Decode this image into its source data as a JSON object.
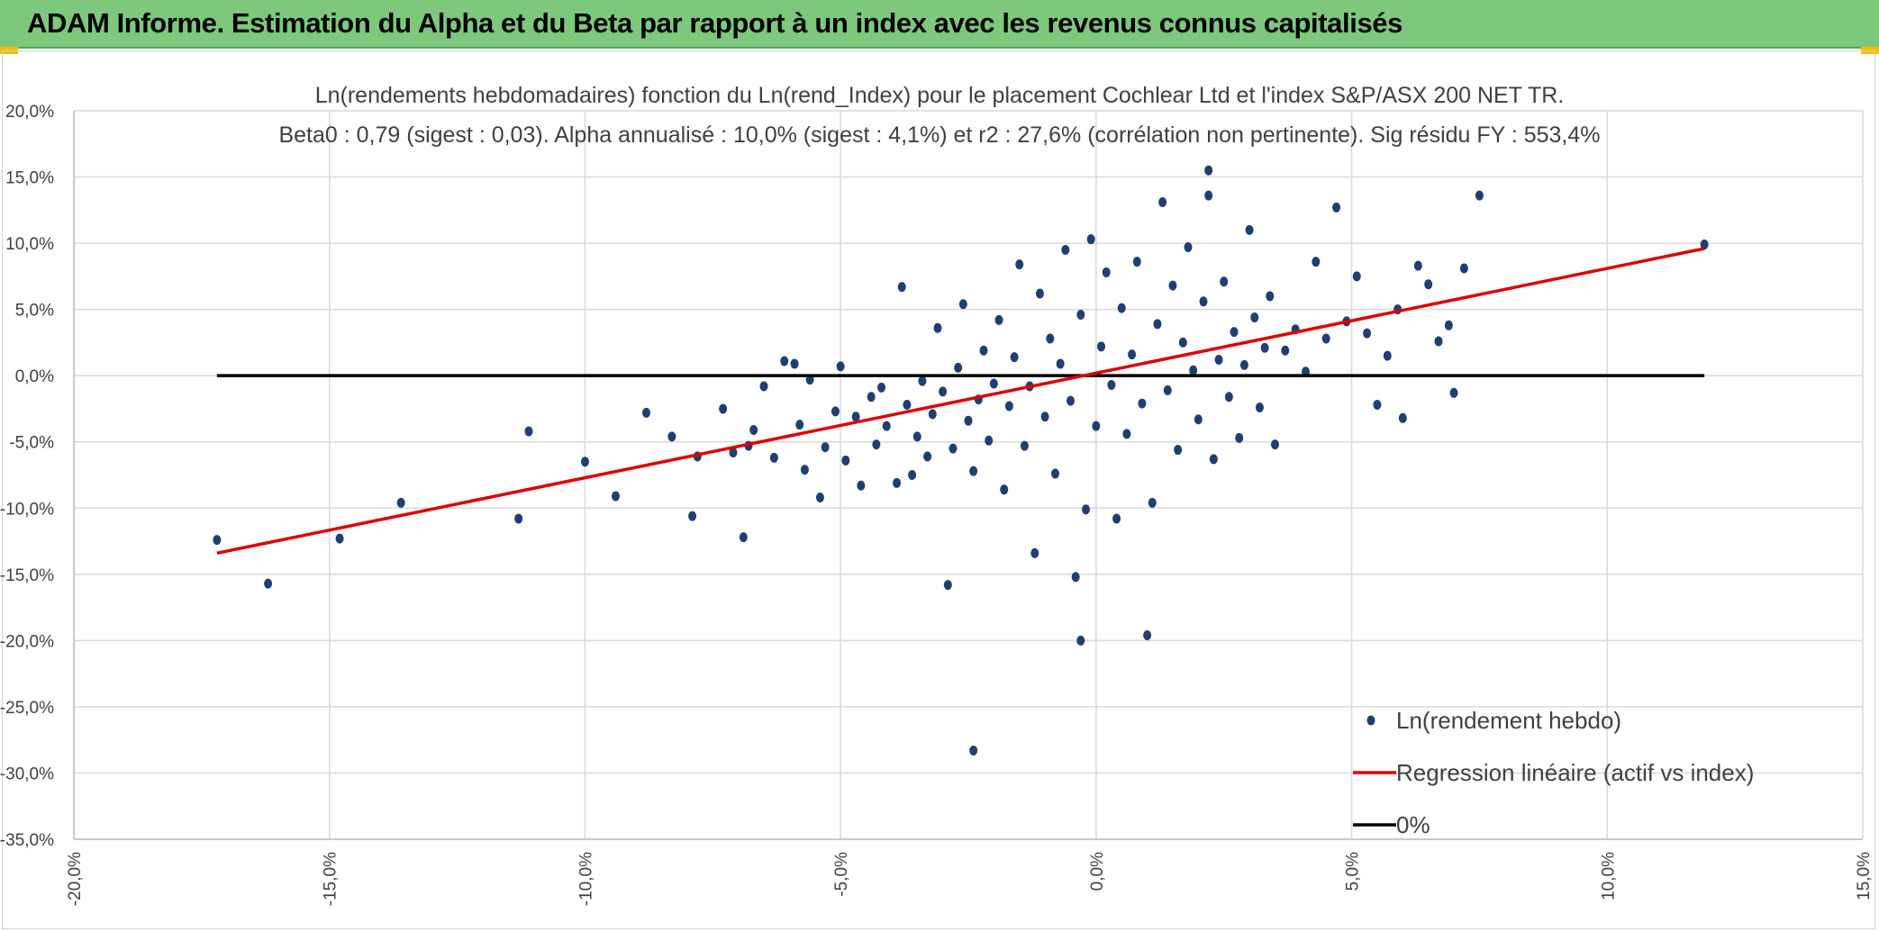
{
  "header": {
    "title": "ADAM Informe. Estimation du Alpha et du Beta par rapport à un index avec les revenus connus capitalisés",
    "background": "#7dc87d",
    "accent": "#f3c000"
  },
  "chart_data": {
    "type": "scatter",
    "title": "Ln(rendements hebdomadaires) fonction du Ln(rend_Index) pour le placement Cochlear Ltd et l'index S&P/ASX 200 NET TR.",
    "subtitle": "Beta0 : 0,79 (sigest : 0,03). Alpha annualisé : 10,0% (sigest : 4,1%) et r2 : 27,6% (corrélation non pertinente). Sig résidu FY : 553,4%",
    "xlabel": "",
    "ylabel": "",
    "xlim": [
      -20,
      15
    ],
    "ylim": [
      -35,
      20
    ],
    "x_ticks": [
      -20,
      -15,
      -10,
      -5,
      0,
      5,
      10,
      15
    ],
    "x_tick_labels": [
      "-20,0%",
      "-15,0%",
      "-10,0%",
      "-5,0%",
      "0,0%",
      "5,0%",
      "10,0%",
      "15,0%"
    ],
    "y_ticks": [
      20,
      15,
      10,
      5,
      0,
      -5,
      -10,
      -15,
      -20,
      -25,
      -30,
      -35
    ],
    "y_tick_labels": [
      "20,0%",
      "15,0%",
      "10,0%",
      "5,0%",
      "0,0%",
      "-5,0%",
      "-10,0%",
      "-15,0%",
      "-20,0%",
      "-25,0%",
      "-30,0%",
      "-35,0%"
    ],
    "grid": true,
    "legend_position": "bottom-right",
    "series": [
      {
        "name": "Ln(rendement hebdo)",
        "kind": "scatter",
        "color": "#1f3f73",
        "points": [
          [
            -17.2,
            -12.4
          ],
          [
            -16.2,
            -15.7
          ],
          [
            -14.8,
            -12.3
          ],
          [
            -13.6,
            -9.6
          ],
          [
            -11.3,
            -10.8
          ],
          [
            -11.1,
            -4.2
          ],
          [
            -10.0,
            -6.5
          ],
          [
            -9.4,
            -9.1
          ],
          [
            -8.8,
            -2.8
          ],
          [
            -8.3,
            -4.6
          ],
          [
            -7.9,
            -10.6
          ],
          [
            -7.8,
            -6.1
          ],
          [
            -7.3,
            -2.5
          ],
          [
            -7.1,
            -5.8
          ],
          [
            -6.9,
            -12.2
          ],
          [
            -6.8,
            -5.3
          ],
          [
            -6.7,
            -4.1
          ],
          [
            -6.5,
            -0.8
          ],
          [
            -6.3,
            -6.2
          ],
          [
            -6.1,
            1.1
          ],
          [
            -5.9,
            0.9
          ],
          [
            -5.8,
            -3.7
          ],
          [
            -5.7,
            -7.1
          ],
          [
            -5.6,
            -0.3
          ],
          [
            -5.4,
            -9.2
          ],
          [
            -5.3,
            -5.4
          ],
          [
            -5.1,
            -2.7
          ],
          [
            -5.0,
            0.7
          ],
          [
            -4.9,
            -6.4
          ],
          [
            -4.7,
            -3.1
          ],
          [
            -4.6,
            -8.3
          ],
          [
            -4.4,
            -1.6
          ],
          [
            -4.3,
            -5.2
          ],
          [
            -4.2,
            -0.9
          ],
          [
            -4.1,
            -3.8
          ],
          [
            -3.9,
            -8.1
          ],
          [
            -3.8,
            6.7
          ],
          [
            -3.7,
            -2.2
          ],
          [
            -3.6,
            -7.5
          ],
          [
            -3.5,
            -4.6
          ],
          [
            -3.4,
            -0.4
          ],
          [
            -3.3,
            -6.1
          ],
          [
            -3.2,
            -2.9
          ],
          [
            -3.1,
            3.6
          ],
          [
            -3.0,
            -1.2
          ],
          [
            -2.9,
            -15.8
          ],
          [
            -2.8,
            -5.5
          ],
          [
            -2.7,
            0.6
          ],
          [
            -2.6,
            5.4
          ],
          [
            -2.5,
            -3.4
          ],
          [
            -2.4,
            -7.2
          ],
          [
            -2.4,
            -28.3
          ],
          [
            -2.3,
            -1.8
          ],
          [
            -2.2,
            1.9
          ],
          [
            -2.1,
            -4.9
          ],
          [
            -2.0,
            -0.6
          ],
          [
            -1.9,
            4.2
          ],
          [
            -1.8,
            -8.6
          ],
          [
            -1.7,
            -2.3
          ],
          [
            -1.6,
            1.4
          ],
          [
            -1.5,
            8.4
          ],
          [
            -1.4,
            -5.3
          ],
          [
            -1.3,
            -0.8
          ],
          [
            -1.2,
            -13.4
          ],
          [
            -1.1,
            6.2
          ],
          [
            -1.0,
            -3.1
          ],
          [
            -0.9,
            2.8
          ],
          [
            -0.8,
            -7.4
          ],
          [
            -0.7,
            0.9
          ],
          [
            -0.6,
            9.5
          ],
          [
            -0.5,
            -1.9
          ],
          [
            -0.4,
            -15.2
          ],
          [
            -0.3,
            4.6
          ],
          [
            -0.3,
            -20.0
          ],
          [
            -0.2,
            -10.1
          ],
          [
            -0.1,
            10.3
          ],
          [
            0.0,
            -3.8
          ],
          [
            0.1,
            2.2
          ],
          [
            0.2,
            7.8
          ],
          [
            0.3,
            -0.7
          ],
          [
            0.4,
            -10.8
          ],
          [
            0.5,
            5.1
          ],
          [
            0.6,
            -4.4
          ],
          [
            0.7,
            1.6
          ],
          [
            0.8,
            8.6
          ],
          [
            0.9,
            -2.1
          ],
          [
            1.0,
            -19.6
          ],
          [
            1.1,
            -9.6
          ],
          [
            1.2,
            3.9
          ],
          [
            1.3,
            13.1
          ],
          [
            1.4,
            -1.1
          ],
          [
            1.5,
            6.8
          ],
          [
            1.6,
            -5.6
          ],
          [
            1.7,
            2.5
          ],
          [
            1.8,
            9.7
          ],
          [
            1.9,
            0.4
          ],
          [
            2.0,
            -3.3
          ],
          [
            2.1,
            5.6
          ],
          [
            2.2,
            15.5
          ],
          [
            2.2,
            13.6
          ],
          [
            2.3,
            -6.3
          ],
          [
            2.4,
            1.2
          ],
          [
            2.5,
            7.1
          ],
          [
            2.6,
            -1.6
          ],
          [
            2.7,
            3.3
          ],
          [
            2.8,
            -4.7
          ],
          [
            2.9,
            0.8
          ],
          [
            3.0,
            11.0
          ],
          [
            3.1,
            4.4
          ],
          [
            3.2,
            -2.4
          ],
          [
            3.3,
            2.1
          ],
          [
            3.4,
            6.0
          ],
          [
            3.5,
            -5.2
          ],
          [
            3.7,
            1.9
          ],
          [
            3.9,
            3.5
          ],
          [
            4.1,
            0.3
          ],
          [
            4.3,
            8.6
          ],
          [
            4.5,
            2.8
          ],
          [
            4.7,
            12.7
          ],
          [
            4.9,
            4.1
          ],
          [
            5.1,
            7.5
          ],
          [
            5.3,
            3.2
          ],
          [
            5.5,
            -2.2
          ],
          [
            5.7,
            1.5
          ],
          [
            5.9,
            5.0
          ],
          [
            6.0,
            -3.2
          ],
          [
            6.3,
            8.3
          ],
          [
            6.5,
            6.9
          ],
          [
            6.7,
            2.6
          ],
          [
            6.9,
            3.8
          ],
          [
            7.0,
            -1.3
          ],
          [
            7.2,
            8.1
          ],
          [
            7.5,
            13.6
          ],
          [
            11.9,
            9.9
          ]
        ]
      },
      {
        "name": "Regression linéaire (actif vs index)",
        "kind": "line",
        "color": "#e00000",
        "points": [
          [
            -17.2,
            -13.4
          ],
          [
            11.9,
            9.6
          ]
        ]
      },
      {
        "name": "0%",
        "kind": "line",
        "color": "#000000",
        "points": [
          [
            -17.2,
            0
          ],
          [
            11.9,
            0
          ]
        ]
      }
    ]
  }
}
